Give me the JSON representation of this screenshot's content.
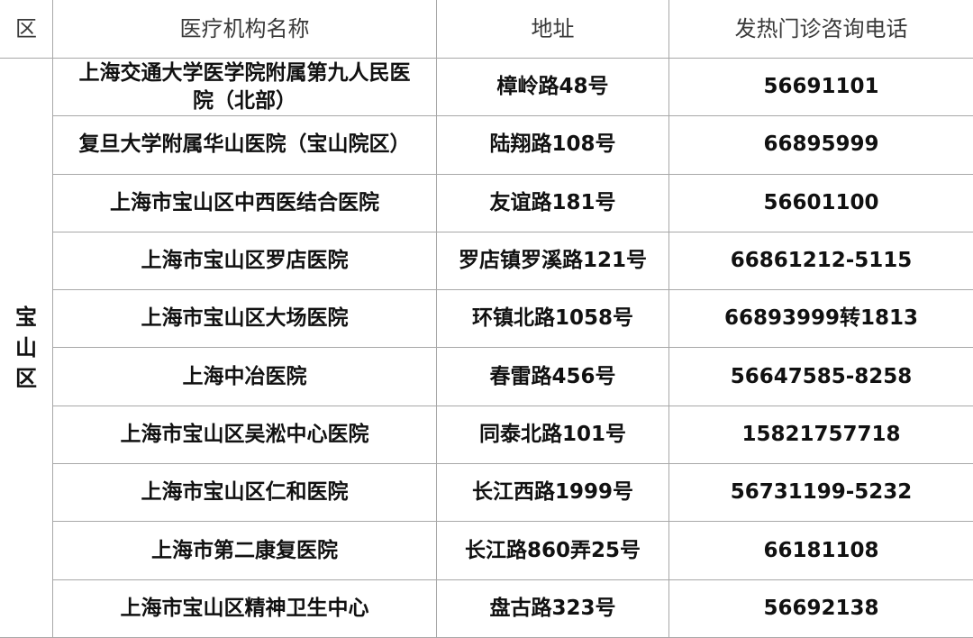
{
  "header": {
    "district": "区",
    "name": "医疗机构名称",
    "address": "地址",
    "phone": "发热门诊咨询电话"
  },
  "district": "宝山区",
  "rows": [
    {
      "name": "上海交通大学医学院附属第九人民医院（北部）",
      "address": "樟岭路48号",
      "phone": "56691101"
    },
    {
      "name": "复旦大学附属华山医院（宝山院区）",
      "address": "陆翔路108号",
      "phone": "66895999"
    },
    {
      "name": "上海市宝山区中西医结合医院",
      "address": "友谊路181号",
      "phone": "56601100"
    },
    {
      "name": "上海市宝山区罗店医院",
      "address": "罗店镇罗溪路121号",
      "phone": "66861212-5115"
    },
    {
      "name": "上海市宝山区大场医院",
      "address": "环镇北路1058号",
      "phone": "66893999转1813"
    },
    {
      "name": "上海中冶医院",
      "address": "春雷路456号",
      "phone": "56647585-8258"
    },
    {
      "name": "上海市宝山区吴淞中心医院",
      "address": "同泰北路101号",
      "phone": "15821757718"
    },
    {
      "name": "上海市宝山区仁和医院",
      "address": "长江西路1999号",
      "phone": "56731199-5232"
    },
    {
      "name": "上海市第二康复医院",
      "address": "长江路860弄25号",
      "phone": "66181108"
    },
    {
      "name": "上海市宝山区精神卫生中心",
      "address": "盘古路323号",
      "phone": "56692138"
    }
  ]
}
